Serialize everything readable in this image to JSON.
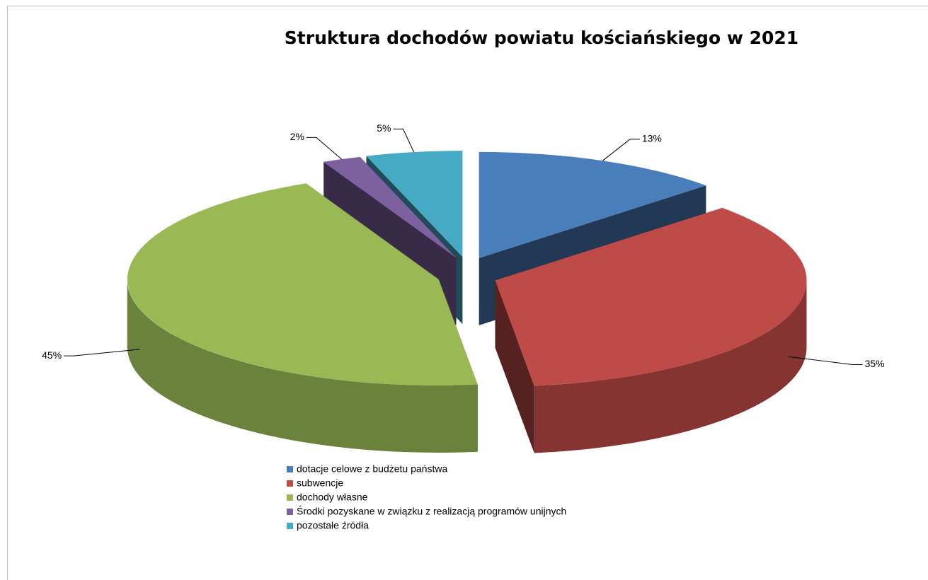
{
  "chart_data": {
    "type": "pie",
    "title": "Struktura dochodów powiatu kościańskiego w 2021",
    "categories": [
      "dotacje celowe z budżetu państwa",
      "subwencje",
      "dochody własne",
      "Środki pozyskane w związku z realizacją programów unijnych",
      "pozostałe źródła"
    ],
    "values": [
      13,
      35,
      45,
      2,
      5
    ],
    "value_labels": [
      "13%",
      "35%",
      "45%",
      "2%",
      "5%"
    ],
    "colors": [
      "#4a7ebb",
      "#be4b48",
      "#98b954",
      "#7d60a0",
      "#46aac5"
    ],
    "legend": "bottom"
  }
}
